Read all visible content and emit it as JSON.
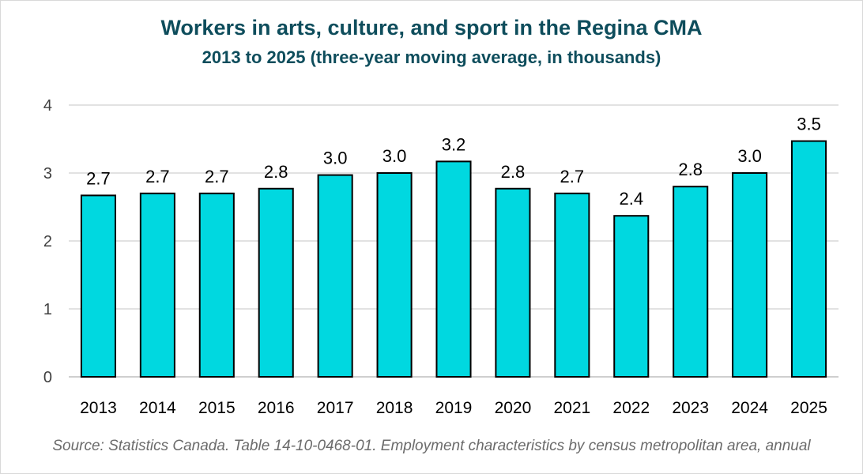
{
  "chart_data": {
    "type": "bar",
    "title": "Workers in arts, culture, and sport in the Regina CMA",
    "subtitle": "2013 to 2025 (three-year moving average, in thousands)",
    "categories": [
      "2013",
      "2014",
      "2015",
      "2016",
      "2017",
      "2018",
      "2019",
      "2020",
      "2021",
      "2022",
      "2023",
      "2024",
      "2025"
    ],
    "values": [
      2.67,
      2.7,
      2.7,
      2.77,
      2.97,
      3.0,
      3.17,
      2.77,
      2.7,
      2.37,
      2.8,
      3.0,
      3.47
    ],
    "data_labels": [
      "2.7",
      "2.7",
      "2.7",
      "2.8",
      "3.0",
      "3.0",
      "3.2",
      "2.8",
      "2.7",
      "2.4",
      "2.8",
      "3.0",
      "3.5"
    ],
    "ylim": [
      0,
      4
    ],
    "yticks": [
      0,
      1,
      2,
      3,
      4
    ],
    "xlabel": "",
    "ylabel": "",
    "grid": true,
    "legend": "none",
    "bar_color": "#00d8e0",
    "bar_edge_color": "#000000",
    "source": "Source: Statistics Canada. Table 14-10-0468-01. Employment characteristics by census metropolitan area, annual"
  }
}
